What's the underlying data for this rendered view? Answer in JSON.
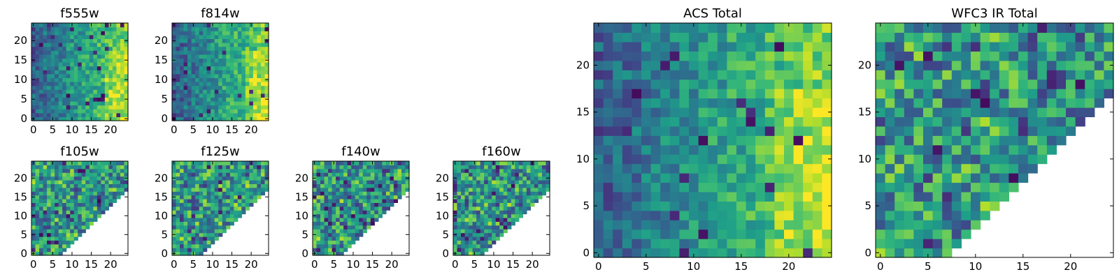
{
  "chart_data": [
    {
      "type": "heatmap",
      "title": "f555w",
      "grid": [
        25,
        25
      ],
      "xticks": [
        "0",
        "5",
        "10",
        "15",
        "20"
      ],
      "yticks": [
        "0",
        "5",
        "10",
        "15",
        "20"
      ],
      "xlim": [
        -0.5,
        24.5
      ],
      "ylim": [
        -0.5,
        24.5
      ],
      "mask": "none",
      "colormap": "viridis",
      "trend": "increases toward right"
    },
    {
      "type": "heatmap",
      "title": "f814w",
      "grid": [
        25,
        25
      ],
      "xticks": [
        "0",
        "5",
        "10",
        "15",
        "20"
      ],
      "yticks": [
        "0",
        "5",
        "10",
        "15",
        "20"
      ],
      "xlim": [
        -0.5,
        24.5
      ],
      "ylim": [
        -0.5,
        24.5
      ],
      "mask": "none",
      "colormap": "viridis",
      "trend": "increases toward right"
    },
    {
      "type": "heatmap",
      "title": "f105w",
      "grid": [
        25,
        25
      ],
      "xticks": [
        "0",
        "5",
        "10",
        "15",
        "20"
      ],
      "yticks": [
        "0",
        "5",
        "10",
        "15",
        "20"
      ],
      "xlim": [
        -0.5,
        24.5
      ],
      "ylim": [
        -0.5,
        24.5
      ],
      "mask": "lower-right triangle empty",
      "colormap": "viridis"
    },
    {
      "type": "heatmap",
      "title": "f125w",
      "grid": [
        25,
        25
      ],
      "xticks": [
        "0",
        "5",
        "10",
        "15",
        "20"
      ],
      "yticks": [
        "0",
        "5",
        "10",
        "15",
        "20"
      ],
      "xlim": [
        -0.5,
        24.5
      ],
      "ylim": [
        -0.5,
        24.5
      ],
      "mask": "lower-right triangle empty",
      "colormap": "viridis"
    },
    {
      "type": "heatmap",
      "title": "f140w",
      "grid": [
        25,
        25
      ],
      "xticks": [
        "0",
        "5",
        "10",
        "15",
        "20"
      ],
      "yticks": [
        "0",
        "5",
        "10",
        "15",
        "20"
      ],
      "xlim": [
        -0.5,
        24.5
      ],
      "ylim": [
        -0.5,
        24.5
      ],
      "mask": "lower-right triangle empty",
      "colormap": "viridis"
    },
    {
      "type": "heatmap",
      "title": "f160w",
      "grid": [
        25,
        25
      ],
      "xticks": [
        "0",
        "5",
        "10",
        "15",
        "20"
      ],
      "yticks": [
        "0",
        "5",
        "10",
        "15",
        "20"
      ],
      "xlim": [
        -0.5,
        24.5
      ],
      "ylim": [
        -0.5,
        24.5
      ],
      "mask": "lower-right triangle empty",
      "colormap": "viridis"
    },
    {
      "type": "heatmap",
      "title": "ACS Total",
      "grid": [
        25,
        25
      ],
      "xticks": [
        "0",
        "5",
        "10",
        "15",
        "20"
      ],
      "yticks": [
        "0",
        "5",
        "10",
        "15",
        "20"
      ],
      "xlim": [
        -0.5,
        24.5
      ],
      "ylim": [
        -0.5,
        24.5
      ],
      "mask": "none",
      "colormap": "viridis",
      "trend": "increases toward right"
    },
    {
      "type": "heatmap",
      "title": "WFC3 IR Total",
      "grid": [
        25,
        25
      ],
      "xticks": [
        "0",
        "5",
        "10",
        "15",
        "20"
      ],
      "yticks": [
        "0",
        "5",
        "10",
        "15",
        "20"
      ],
      "xlim": [
        -0.5,
        24.5
      ],
      "ylim": [
        -0.5,
        24.5
      ],
      "mask": "lower-right triangle empty",
      "colormap": "viridis"
    }
  ]
}
